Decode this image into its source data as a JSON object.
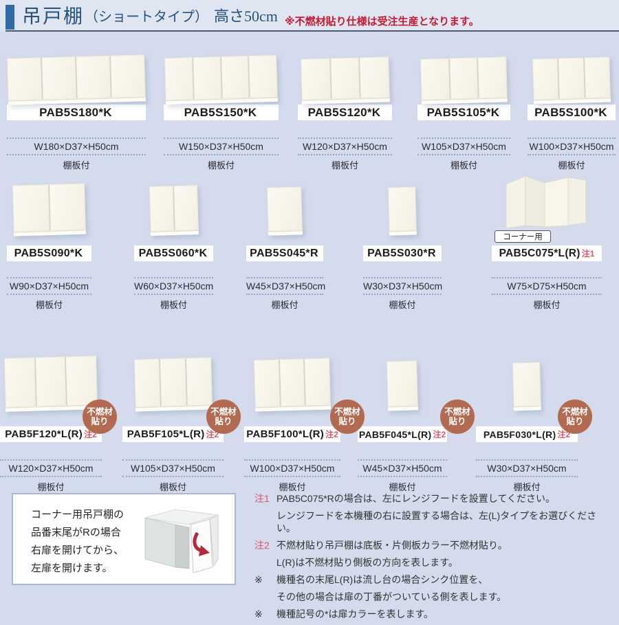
{
  "header": {
    "title_main": "吊戸棚",
    "title_paren": "（ショートタイプ）",
    "title_height": "高さ50cm",
    "note": "※不燃材貼り仕様は受注生産となります。"
  },
  "badge": {
    "line1": "不燃材",
    "line2": "貼り"
  },
  "products": [
    {
      "code": "PAB5S180*K",
      "note_ref": "",
      "dims": "W180×D37×H50cm",
      "shelf": "棚板付",
      "doors": 4
    },
    {
      "code": "PAB5S150*K",
      "note_ref": "",
      "dims": "W150×D37×H50cm",
      "shelf": "棚板付",
      "doors": 4
    },
    {
      "code": "PAB5S120*K",
      "note_ref": "",
      "dims": "W120×D37×H50cm",
      "shelf": "棚板付",
      "doors": 3
    },
    {
      "code": "PAB5S105*K",
      "note_ref": "",
      "dims": "W105×D37×H50cm",
      "shelf": "棚板付",
      "doors": 3
    },
    {
      "code": "PAB5S100*K",
      "note_ref": "",
      "dims": "W100×D37×H50cm",
      "shelf": "棚板付",
      "doors": 3
    },
    {
      "code": "PAB5S090*K",
      "note_ref": "",
      "dims": "W90×D37×H50cm",
      "shelf": "棚板付",
      "doors": 2
    },
    {
      "code": "PAB5S060*K",
      "note_ref": "",
      "dims": "W60×D37×H50cm",
      "shelf": "棚板付",
      "doors": 2
    },
    {
      "code": "PAB5S045*R",
      "note_ref": "",
      "dims": "W45×D37×H50cm",
      "shelf": "棚板付",
      "doors": 1
    },
    {
      "code": "PAB5S030*R",
      "note_ref": "",
      "dims": "W30×D37×H50cm",
      "shelf": "棚板付",
      "doors": 1
    },
    {
      "code": "PAB5C075*L(R)",
      "note_ref": "注1",
      "dims": "W75×D75×H50cm",
      "shelf": "棚板付",
      "tag": "コーナー用",
      "doors": 0
    },
    {
      "code": "PAB5F120*L(R)",
      "note_ref": "注2",
      "dims": "W120×D37×H50cm",
      "shelf": "棚板付",
      "doors": 3
    },
    {
      "code": "PAB5F105*L(R)",
      "note_ref": "注2",
      "dims": "W105×D37×H50cm",
      "shelf": "棚板付",
      "doors": 3
    },
    {
      "code": "PAB5F100*L(R)",
      "note_ref": "注2",
      "dims": "W100×D37×H50cm",
      "shelf": "棚板付",
      "doors": 3
    },
    {
      "code": "PAB5F045*L(R)",
      "note_ref": "注2",
      "dims": "W45×D37×H50cm",
      "shelf": "棚板付",
      "doors": 1
    },
    {
      "code": "PAB5F030*L(R)",
      "note_ref": "注2",
      "dims": "W30×D37×H50cm",
      "shelf": "棚板付",
      "doors": 1
    }
  ],
  "corner_info": {
    "lines": [
      "コーナー用吊戸棚の",
      "品番末尾がRの場合",
      "右扉を開けてから、",
      "左扉を開けます。"
    ]
  },
  "notes": [
    {
      "label": "注1",
      "text": "PAB5C075*Rの場合は、左にレンジフードを設置してください。"
    },
    {
      "label": "",
      "text": "レンジフードを本機種の右に設置する場合は、左(L)タイプをお選びください。"
    },
    {
      "label": "注2",
      "text": "不燃材貼り吊戸棚は底板・片側板カラー不燃材貼り。"
    },
    {
      "label": "",
      "text": "L(R)は不燃材貼り側板の方向を表します。"
    },
    {
      "label": "※",
      "text": "機種名の末尾L(R)は流し台の場合シンク位置を、"
    },
    {
      "label": "",
      "text": "その他の場合は扉の丁番がついている側を表します。"
    },
    {
      "label": "※",
      "text": "機種記号の*は扉カラーを表します。"
    }
  ],
  "colors": {
    "page_bg": "#d3dbec",
    "header_bg": "#dfe6f2",
    "header_bar": "#2f6ba6",
    "header_text": "#27517d",
    "alert_red": "#c41a33",
    "ref_red": "#d85667",
    "badge_bg": "#b26a50",
    "label_bg": "#ffffff"
  }
}
